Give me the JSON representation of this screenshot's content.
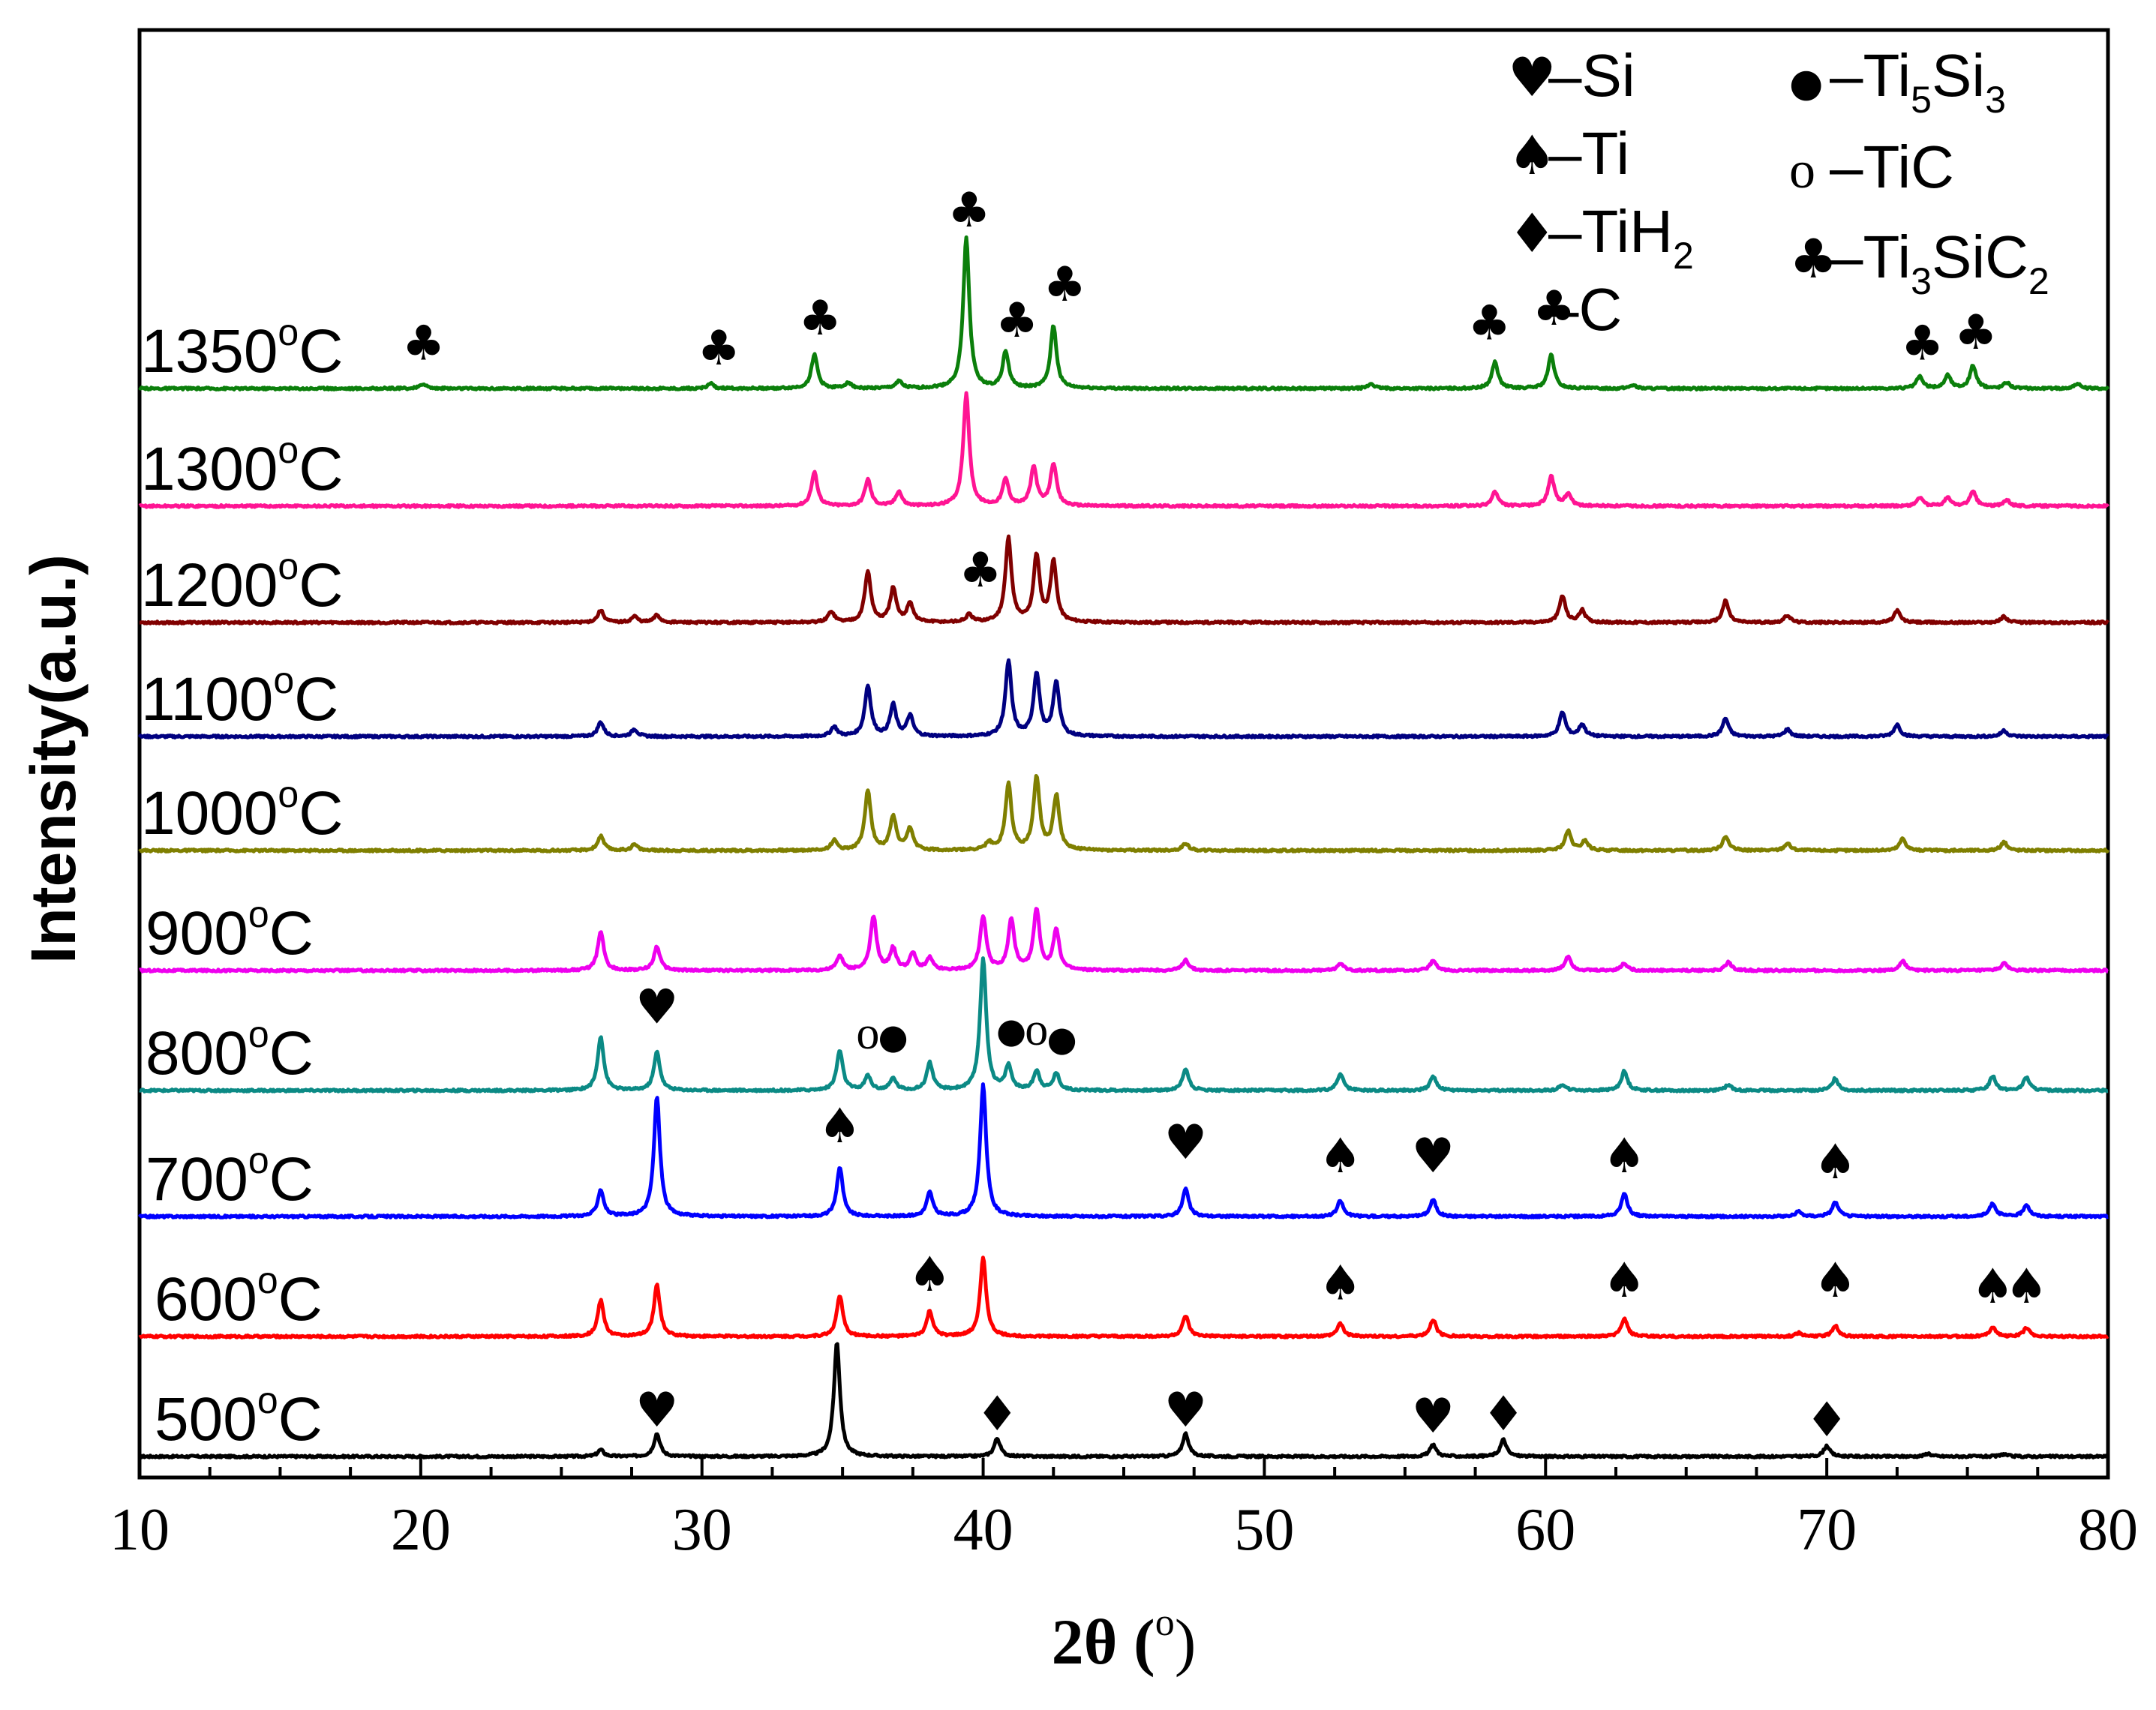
{
  "chart_data": {
    "type": "line",
    "title": "",
    "xlabel_main": "2θ (",
    "xlabel_sup": "o",
    "xlabel_end": ")",
    "ylabel": "Intensity(a.u.)",
    "xlim": [
      10,
      80
    ],
    "x_ticks": [
      "10",
      "20",
      "30",
      "40",
      "50",
      "60",
      "70",
      "80"
    ],
    "x_tick_values": [
      10,
      20,
      30,
      40,
      50,
      60,
      70,
      80
    ],
    "grid": false,
    "legend_position": "top-right",
    "legend": [
      {
        "symbol": "heart",
        "char": "♥",
        "dash": "–",
        "text": "Si",
        "sub": ""
      },
      {
        "symbol": "spade",
        "char": "♠",
        "dash": "–",
        "text": "Ti",
        "sub": ""
      },
      {
        "symbol": "diamond",
        "char": "♦",
        "dash": "–",
        "text": "TiH",
        "sub": "2"
      },
      {
        "symbol": "none",
        "char": "",
        "dash": "–",
        "text": "C",
        "sub": ""
      },
      {
        "symbol": "filled-circle",
        "char": "●",
        "dash": "–",
        "text": "Ti",
        "sub": "5",
        "text2": "Si",
        "sub2": "3"
      },
      {
        "symbol": "open-circle",
        "char": "o",
        "dash": "–",
        "text": "TiC",
        "sub": ""
      },
      {
        "symbol": "club",
        "char": "♣",
        "dash": "–",
        "text": "Ti",
        "sub": "3",
        "text2": "SiC",
        "sub2": "2"
      }
    ],
    "series": [
      {
        "name": "500",
        "label_unit": "C",
        "label_sup": "o",
        "color": "#000000",
        "baseline": 0.0,
        "peaks": [
          [
            26.4,
            0.055
          ],
          [
            28.4,
            0.19
          ],
          [
            34.8,
            0.95
          ],
          [
            40.5,
            0.15
          ],
          [
            47.2,
            0.19
          ],
          [
            56.0,
            0.1
          ],
          [
            58.5,
            0.14
          ],
          [
            70.0,
            0.09
          ],
          [
            73.6,
            0.025
          ],
          [
            76.3,
            0.02
          ]
        ],
        "markers": [
          {
            "sym": "heart",
            "x": 28.4,
            "y": 0.25
          },
          {
            "sym": "diamond",
            "x": 40.5,
            "y": 0.22
          },
          {
            "sym": "heart",
            "x": 47.2,
            "y": 0.25
          },
          {
            "sym": "heart",
            "x": 56.0,
            "y": 0.2
          },
          {
            "sym": "diamond",
            "x": 58.5,
            "y": 0.22
          },
          {
            "sym": "diamond",
            "x": 70.0,
            "y": 0.17
          }
        ]
      },
      {
        "name": "600",
        "label_unit": "C",
        "label_sup": "o",
        "color": "#ff0000",
        "baseline": 1.0,
        "peaks": [
          [
            26.4,
            0.3
          ],
          [
            28.4,
            0.43
          ],
          [
            34.9,
            0.34
          ],
          [
            38.1,
            0.21
          ],
          [
            40.0,
            0.65
          ],
          [
            47.2,
            0.17
          ],
          [
            52.7,
            0.11
          ],
          [
            56.0,
            0.14
          ],
          [
            62.8,
            0.15
          ],
          [
            69.0,
            0.03
          ],
          [
            70.3,
            0.09
          ],
          [
            75.9,
            0.08
          ],
          [
            77.1,
            0.07
          ]
        ],
        "markers": [
          {
            "sym": "spade",
            "x": 38.1,
            "y": 0.38
          },
          {
            "sym": "spade",
            "x": 52.7,
            "y": 0.31
          },
          {
            "sym": "spade",
            "x": 62.8,
            "y": 0.33
          },
          {
            "sym": "spade",
            "x": 70.3,
            "y": 0.33
          },
          {
            "sym": "spade",
            "x": 75.9,
            "y": 0.28
          },
          {
            "sym": "spade",
            "x": 77.1,
            "y": 0.28
          }
        ]
      },
      {
        "name": "700",
        "label_unit": "C",
        "label_sup": "o",
        "color": "#0000ff",
        "baseline": 2.0,
        "peaks": [
          [
            26.4,
            0.22
          ],
          [
            28.4,
            1.0
          ],
          [
            34.9,
            0.41
          ],
          [
            38.1,
            0.2
          ],
          [
            40.0,
            1.1
          ],
          [
            47.2,
            0.23
          ],
          [
            52.7,
            0.13
          ],
          [
            56.0,
            0.14
          ],
          [
            62.8,
            0.19
          ],
          [
            69.0,
            0.04
          ],
          [
            70.3,
            0.12
          ],
          [
            75.9,
            0.11
          ],
          [
            77.1,
            0.1
          ]
        ],
        "markers": [
          {
            "sym": "spade",
            "x": 34.9,
            "y": 0.62
          },
          {
            "sym": "heart",
            "x": 47.2,
            "y": 0.48
          },
          {
            "sym": "spade",
            "x": 52.7,
            "y": 0.37
          },
          {
            "sym": "heart",
            "x": 56.0,
            "y": 0.37
          },
          {
            "sym": "spade",
            "x": 62.8,
            "y": 0.37
          },
          {
            "sym": "spade",
            "x": 70.3,
            "y": 0.32
          }
        ]
      },
      {
        "name": "800",
        "label_unit": "C",
        "label_sup": "o",
        "color": "#0b8a85",
        "baseline": 3.05,
        "peaks": [
          [
            26.4,
            0.45
          ],
          [
            28.4,
            0.32
          ],
          [
            34.9,
            0.33
          ],
          [
            35.9,
            0.12
          ],
          [
            36.8,
            0.1
          ],
          [
            38.1,
            0.23
          ],
          [
            40.0,
            1.1
          ],
          [
            40.9,
            0.2
          ],
          [
            41.9,
            0.16
          ],
          [
            42.6,
            0.14
          ],
          [
            47.2,
            0.18
          ],
          [
            52.7,
            0.14
          ],
          [
            56.0,
            0.12
          ],
          [
            60.6,
            0.05
          ],
          [
            62.8,
            0.16
          ],
          [
            66.5,
            0.05
          ],
          [
            70.3,
            0.1
          ],
          [
            75.9,
            0.12
          ],
          [
            77.1,
            0.11
          ]
        ],
        "markers": [
          {
            "sym": "heart",
            "x": 28.4,
            "y": 0.56
          },
          {
            "sym": "open-circle",
            "x": 35.9,
            "y": 0.35
          },
          {
            "sym": "filled-circle",
            "x": 36.8,
            "y": 0.35
          },
          {
            "sym": "filled-circle",
            "x": 41.0,
            "y": 0.4
          },
          {
            "sym": "open-circle",
            "x": 41.9,
            "y": 0.38
          },
          {
            "sym": "filled-circle",
            "x": 42.8,
            "y": 0.33
          }
        ]
      },
      {
        "name": "900",
        "label_unit": "C",
        "label_sup": "o",
        "color": "#ee00ee",
        "baseline": 4.05,
        "peaks": [
          [
            26.4,
            0.32
          ],
          [
            28.4,
            0.2
          ],
          [
            34.9,
            0.12
          ],
          [
            36.1,
            0.45
          ],
          [
            36.8,
            0.18
          ],
          [
            37.5,
            0.14
          ],
          [
            38.1,
            0.1
          ],
          [
            40.0,
            0.45
          ],
          [
            41.0,
            0.42
          ],
          [
            41.9,
            0.5
          ],
          [
            42.6,
            0.33
          ],
          [
            47.2,
            0.09
          ],
          [
            52.7,
            0.06
          ],
          [
            56.0,
            0.08
          ],
          [
            60.8,
            0.12
          ],
          [
            62.8,
            0.06
          ],
          [
            66.5,
            0.07
          ],
          [
            72.7,
            0.08
          ],
          [
            76.3,
            0.06
          ]
        ],
        "markers": []
      },
      {
        "name": "1000",
        "label_unit": "C",
        "label_sup": "o",
        "color": "#7f7f00",
        "baseline": 5.05,
        "peaks": [
          [
            26.4,
            0.12
          ],
          [
            27.6,
            0.05
          ],
          [
            34.7,
            0.08
          ],
          [
            35.9,
            0.5
          ],
          [
            36.8,
            0.28
          ],
          [
            37.4,
            0.18
          ],
          [
            40.2,
            0.06
          ],
          [
            40.9,
            0.55
          ],
          [
            41.9,
            0.6
          ],
          [
            42.6,
            0.45
          ],
          [
            47.2,
            0.06
          ],
          [
            60.8,
            0.16
          ],
          [
            61.4,
            0.08
          ],
          [
            66.4,
            0.12
          ],
          [
            68.6,
            0.06
          ],
          [
            72.7,
            0.1
          ],
          [
            76.3,
            0.07
          ]
        ],
        "markers": []
      },
      {
        "name": "1100",
        "label_unit": "C",
        "label_sup": "o",
        "color": "#000080",
        "baseline": 6.0,
        "peaks": [
          [
            26.4,
            0.12
          ],
          [
            27.6,
            0.06
          ],
          [
            34.7,
            0.08
          ],
          [
            35.9,
            0.42
          ],
          [
            36.8,
            0.26
          ],
          [
            37.4,
            0.17
          ],
          [
            40.9,
            0.62
          ],
          [
            41.9,
            0.52
          ],
          [
            42.6,
            0.45
          ],
          [
            60.6,
            0.2
          ],
          [
            61.3,
            0.1
          ],
          [
            66.4,
            0.15
          ],
          [
            68.6,
            0.06
          ],
          [
            72.5,
            0.1
          ],
          [
            76.3,
            0.05
          ]
        ],
        "markers": []
      },
      {
        "name": "1200",
        "label_unit": "C",
        "label_sup": "o",
        "color": "#800000",
        "baseline": 6.95,
        "peaks": [
          [
            26.4,
            0.1
          ],
          [
            27.6,
            0.05
          ],
          [
            28.4,
            0.06
          ],
          [
            34.6,
            0.09
          ],
          [
            35.9,
            0.42
          ],
          [
            36.8,
            0.28
          ],
          [
            37.4,
            0.16
          ],
          [
            39.5,
            0.06
          ],
          [
            40.9,
            0.7
          ],
          [
            41.9,
            0.55
          ],
          [
            42.5,
            0.5
          ],
          [
            60.6,
            0.22
          ],
          [
            61.3,
            0.1
          ],
          [
            66.4,
            0.18
          ],
          [
            68.6,
            0.06
          ],
          [
            72.5,
            0.1
          ],
          [
            76.3,
            0.05
          ]
        ],
        "markers": [
          {
            "sym": "club",
            "x": 39.9,
            "y": 0.3
          }
        ]
      },
      {
        "name": "1300",
        "label_unit": "C",
        "label_sup": "o",
        "color": "#ff1493",
        "baseline": 7.92,
        "peaks": [
          [
            34.0,
            0.28
          ],
          [
            35.9,
            0.22
          ],
          [
            37.0,
            0.12
          ],
          [
            39.4,
            0.93
          ],
          [
            40.8,
            0.22
          ],
          [
            41.8,
            0.32
          ],
          [
            42.5,
            0.35
          ],
          [
            58.2,
            0.12
          ],
          [
            60.2,
            0.25
          ],
          [
            60.8,
            0.1
          ],
          [
            73.3,
            0.07
          ],
          [
            74.3,
            0.07
          ],
          [
            75.2,
            0.12
          ],
          [
            76.4,
            0.05
          ]
        ],
        "markers": []
      },
      {
        "name": "1350",
        "label_unit": "C",
        "label_sup": "o",
        "color": "#0b7f0b",
        "baseline": 8.9,
        "peaks": [
          [
            20.1,
            0.04
          ],
          [
            30.3,
            0.04
          ],
          [
            34.0,
            0.28
          ],
          [
            35.2,
            0.05
          ],
          [
            37.0,
            0.06
          ],
          [
            39.4,
            1.25
          ],
          [
            40.8,
            0.3
          ],
          [
            42.5,
            0.52
          ],
          [
            53.8,
            0.04
          ],
          [
            58.2,
            0.22
          ],
          [
            60.2,
            0.28
          ],
          [
            63.1,
            0.03
          ],
          [
            73.3,
            0.1
          ],
          [
            74.3,
            0.11
          ],
          [
            75.2,
            0.19
          ],
          [
            76.4,
            0.05
          ],
          [
            78.9,
            0.04
          ]
        ],
        "markers": [
          {
            "sym": "club",
            "x": 20.1,
            "y": 0.24
          },
          {
            "sym": "club",
            "x": 30.6,
            "y": 0.2
          },
          {
            "sym": "club",
            "x": 34.2,
            "y": 0.45
          },
          {
            "sym": "club",
            "x": 39.5,
            "y": 1.35
          },
          {
            "sym": "club",
            "x": 41.2,
            "y": 0.43
          },
          {
            "sym": "club",
            "x": 42.9,
            "y": 0.73
          },
          {
            "sym": "club",
            "x": 58.0,
            "y": 0.41
          },
          {
            "sym": "club",
            "x": 60.3,
            "y": 0.53
          },
          {
            "sym": "club",
            "x": 73.4,
            "y": 0.24
          },
          {
            "sym": "club",
            "x": 75.3,
            "y": 0.33
          }
        ]
      }
    ]
  }
}
